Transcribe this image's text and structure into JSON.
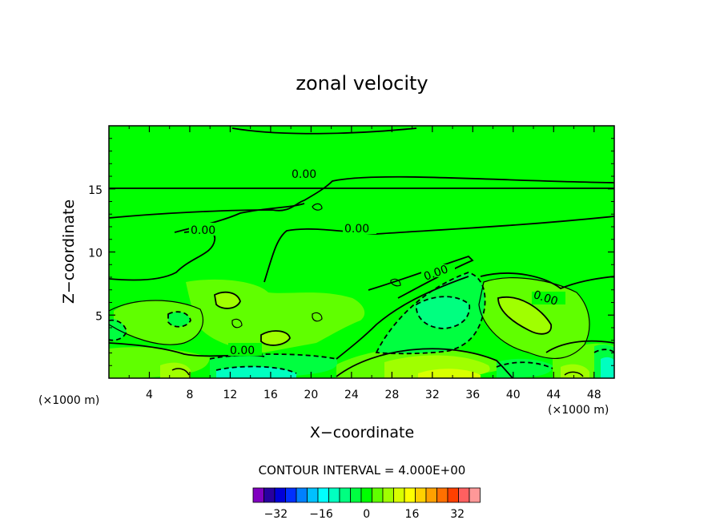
{
  "chart_data": {
    "type": "heatmap",
    "subtype": "filled contour",
    "title": "zonal velocity",
    "xlabel": "X−coordinate",
    "ylabel": "Z−coordinate",
    "x_unit_left": "(×1000 m)",
    "x_unit_right": "(×1000 m)",
    "x_ticks": [
      4,
      8,
      12,
      16,
      20,
      24,
      28,
      32,
      36,
      40,
      44,
      48
    ],
    "y_ticks": [
      5,
      10,
      15
    ],
    "xlim": [
      0,
      50
    ],
    "ylim": [
      0,
      20
    ],
    "contour_labels": [
      "0.00",
      "0.00",
      "0.00",
      "0.00",
      "0.00",
      "0.00"
    ],
    "contour_interval_text": "CONTOUR INTERVAL =  4.000E+00",
    "colorbar": {
      "levels": [
        -40,
        -36,
        -32,
        -28,
        -24,
        -20,
        -16,
        -12,
        -8,
        -4,
        0,
        4,
        8,
        12,
        16,
        20,
        24,
        28,
        32,
        36,
        40
      ],
      "tick_labels": [
        "−32",
        "−16",
        "0",
        "16",
        "32"
      ],
      "tick_values": [
        -32,
        -16,
        0,
        16,
        32
      ],
      "colors": [
        "#8000c0",
        "#2800a0",
        "#0000d8",
        "#0030ff",
        "#0080ff",
        "#00c0ff",
        "#00ffff",
        "#00ffc0",
        "#00ff80",
        "#00ff40",
        "#00ff00",
        "#60ff00",
        "#a0ff00",
        "#d8ff00",
        "#ffff00",
        "#ffd000",
        "#ffa000",
        "#ff7000",
        "#ff4000",
        "#ff6060",
        "#ff9898"
      ]
    },
    "background_value": 0,
    "grid": false
  }
}
